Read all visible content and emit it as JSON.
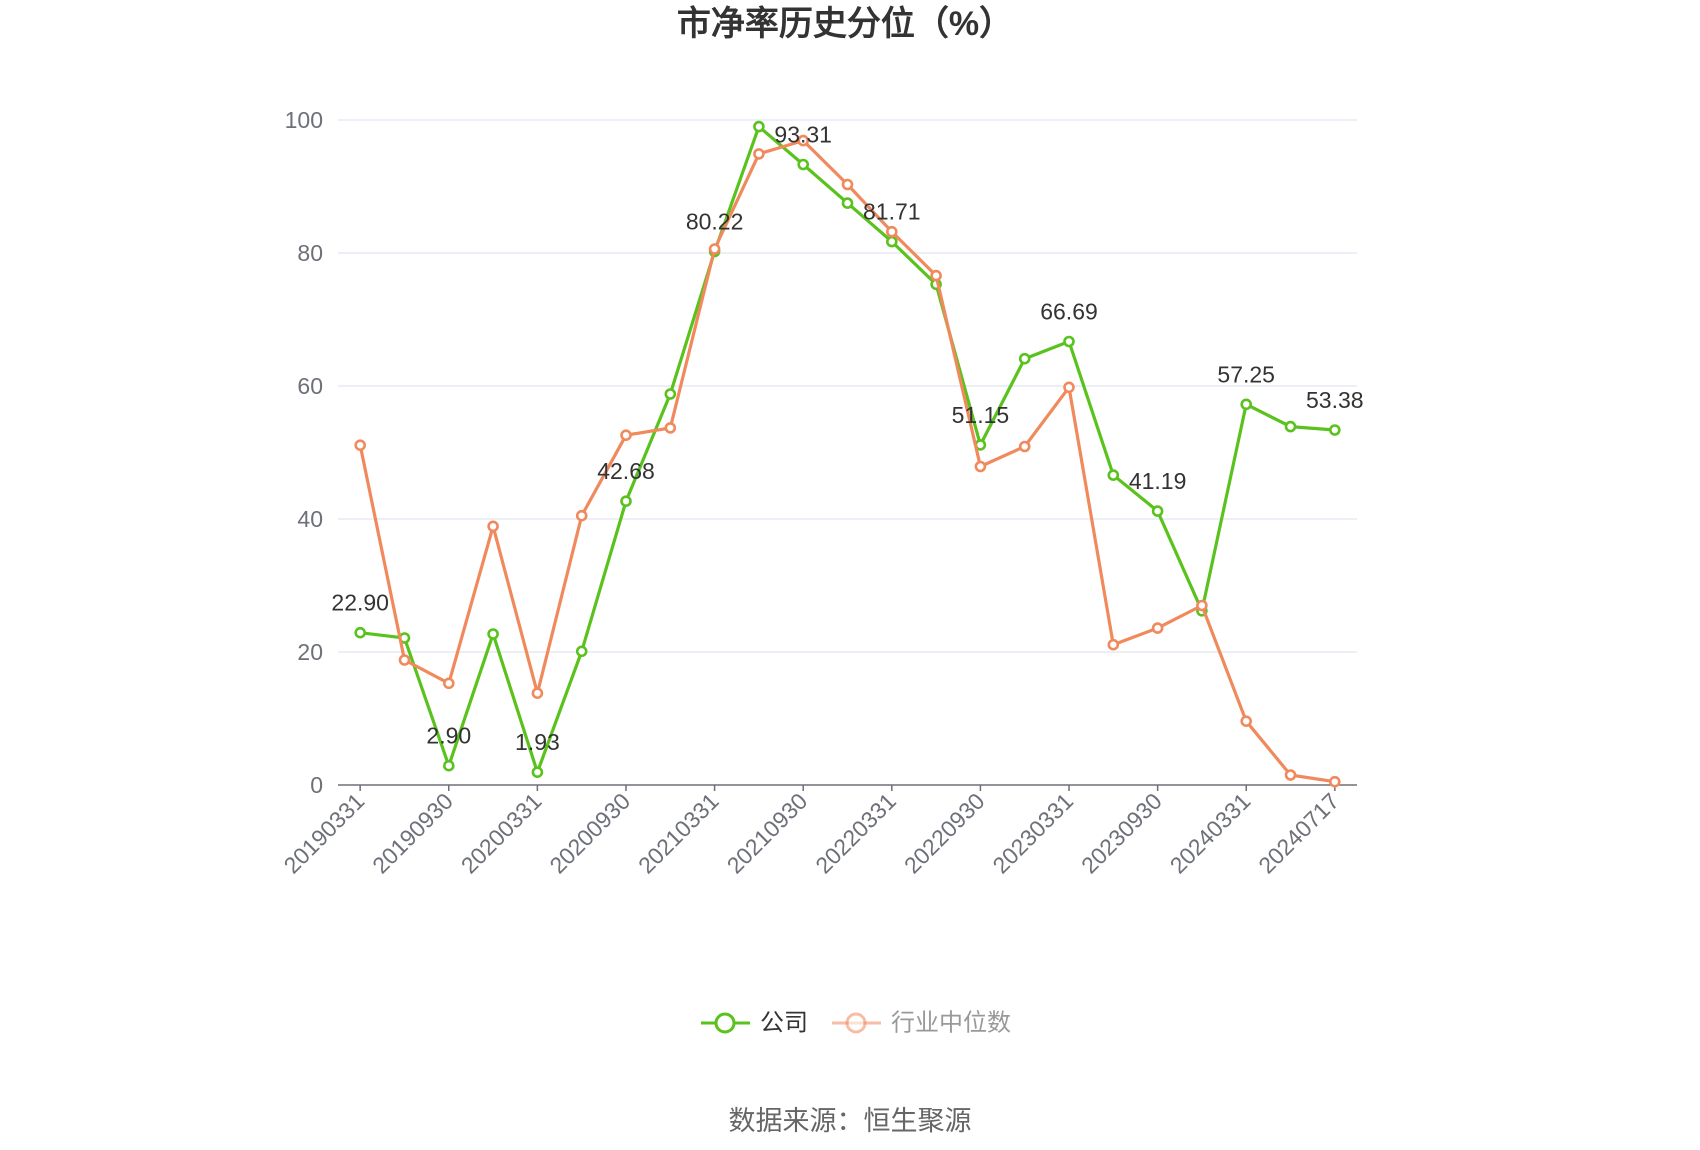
{
  "source": "数据来源：恒生聚源",
  "chart_data": {
    "type": "line",
    "title": "市净率历史分位（%）",
    "categories": [
      "20190331",
      "",
      "20190930",
      "",
      "20200331",
      "",
      "20200930",
      "",
      "20210331",
      "",
      "20210930",
      "",
      "20220331",
      "",
      "20220930",
      "",
      "20230331",
      "",
      "20230930",
      "",
      "20240331",
      "",
      "20240717"
    ],
    "ylim": [
      0,
      100
    ],
    "yticks": [
      0,
      20,
      40,
      60,
      80,
      100
    ],
    "grid": true,
    "legend_position": "bottom",
    "series": [
      {
        "name": "公司",
        "color": "#5AC21D",
        "values": [
          22.9,
          22.1,
          2.9,
          22.7,
          1.93,
          20.1,
          42.68,
          58.8,
          80.22,
          99.0,
          93.31,
          87.5,
          81.71,
          75.3,
          51.15,
          64.1,
          66.69,
          46.6,
          41.19,
          26.2,
          57.25,
          53.9,
          53.38
        ],
        "data_labels": [
          "22.90",
          "",
          "2.90",
          "",
          "1.93",
          "",
          "42.68",
          "",
          "80.22",
          "",
          "93.31",
          "",
          "81.71",
          "",
          "51.15",
          "",
          "66.69",
          "",
          "41.19",
          "",
          "57.25",
          "",
          "53.38"
        ]
      },
      {
        "name": "行业中位数",
        "color": "#F08A5D",
        "values": [
          51.1,
          18.8,
          15.3,
          38.9,
          13.8,
          40.5,
          52.6,
          53.7,
          80.6,
          94.9,
          96.9,
          90.3,
          83.2,
          76.6,
          47.9,
          50.9,
          59.8,
          21.1,
          23.6,
          27.0,
          9.6,
          1.5,
          0.5
        ]
      }
    ]
  }
}
